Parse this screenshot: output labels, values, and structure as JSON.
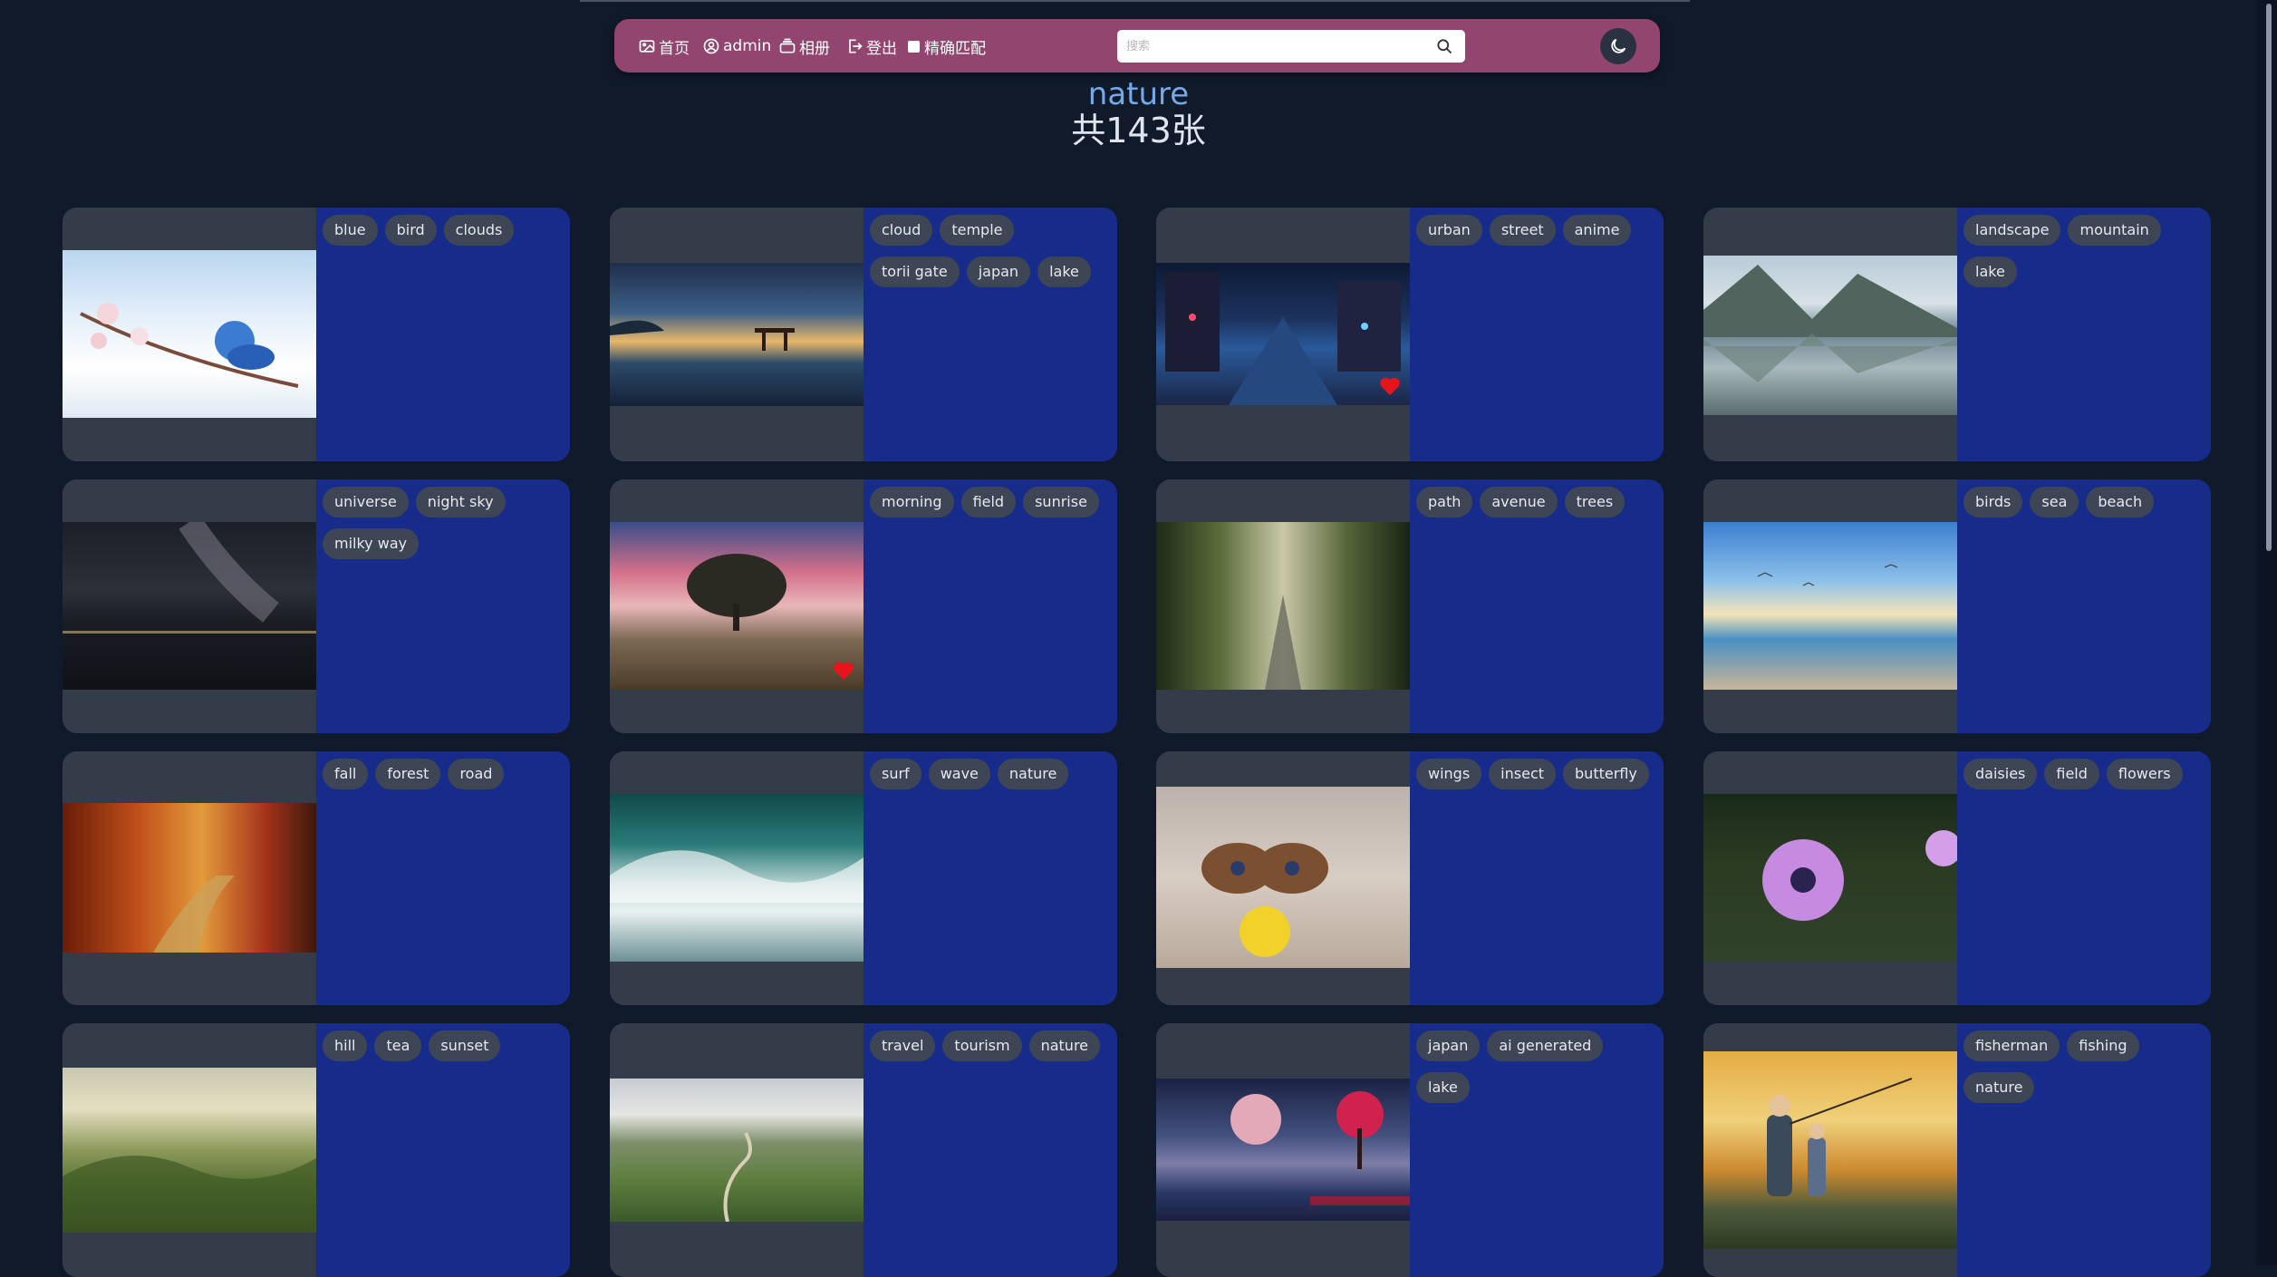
{
  "nav": {
    "home": "首页",
    "user": "admin",
    "albums": "相册",
    "logout": "登出",
    "exact_match": "精确匹配",
    "search_placeholder": "搜索"
  },
  "header": {
    "title": "nature",
    "count": "共143张"
  },
  "colors": {
    "navbar": "#92456f",
    "card_panel": "#172c8a",
    "tag_bg": "#3e4656",
    "title": "#76a9e6",
    "heart": "#e8141c"
  },
  "cards": [
    {
      "tags": [
        "blue",
        "bird",
        "clouds"
      ],
      "liked": false
    },
    {
      "tags": [
        "cloud",
        "temple",
        "torii gate",
        "japan",
        "lake"
      ],
      "liked": false
    },
    {
      "tags": [
        "urban",
        "street",
        "anime"
      ],
      "liked": true
    },
    {
      "tags": [
        "landscape",
        "mountain",
        "lake"
      ],
      "liked": false
    },
    {
      "tags": [
        "universe",
        "night sky",
        "milky way"
      ],
      "liked": false
    },
    {
      "tags": [
        "morning",
        "field",
        "sunrise"
      ],
      "liked": true
    },
    {
      "tags": [
        "path",
        "avenue",
        "trees"
      ],
      "liked": false
    },
    {
      "tags": [
        "birds",
        "sea",
        "beach"
      ],
      "liked": false
    },
    {
      "tags": [
        "fall",
        "forest",
        "road"
      ],
      "liked": false
    },
    {
      "tags": [
        "surf",
        "wave",
        "nature"
      ],
      "liked": false
    },
    {
      "tags": [
        "wings",
        "insect",
        "butterfly"
      ],
      "liked": false
    },
    {
      "tags": [
        "daisies",
        "field",
        "flowers"
      ],
      "liked": false
    },
    {
      "tags": [
        "hill",
        "tea",
        "sunset"
      ],
      "liked": false
    },
    {
      "tags": [
        "travel",
        "tourism",
        "nature"
      ],
      "liked": false
    },
    {
      "tags": [
        "japan",
        "ai generated",
        "lake"
      ],
      "liked": false
    },
    {
      "tags": [
        "fisherman",
        "fishing",
        "nature"
      ],
      "liked": false
    }
  ]
}
